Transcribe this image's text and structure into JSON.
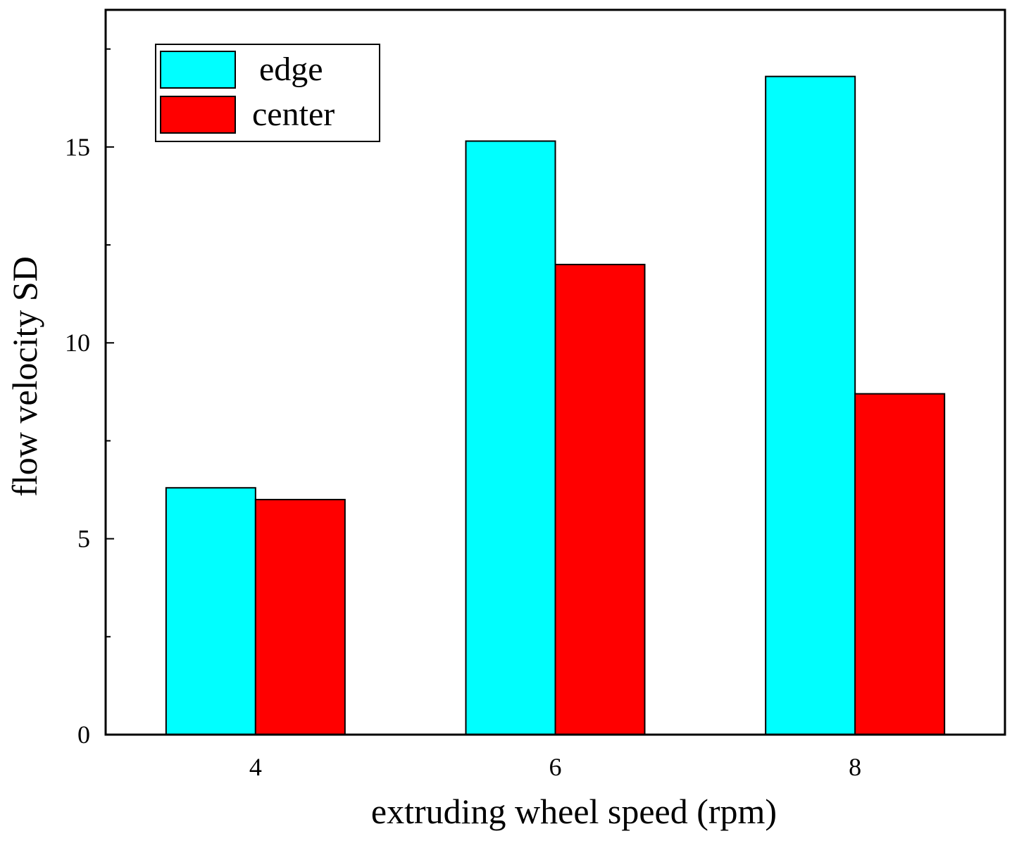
{
  "chart_data": {
    "type": "bar",
    "categories": [
      "4",
      "6",
      "8"
    ],
    "series": [
      {
        "name": "edge",
        "values": [
          6.3,
          15.15,
          16.8
        ],
        "color": "#00ffff"
      },
      {
        "name": "center",
        "values": [
          6.0,
          12.0,
          8.7
        ],
        "color": "#ff0000"
      }
    ],
    "xlabel": "extruding wheel speed (rpm)",
    "ylabel": "flow velocity SD",
    "ylim": [
      0,
      18.5
    ],
    "yticks": [
      {
        "value": 0,
        "label": "0"
      },
      {
        "value": 5,
        "label": "5"
      },
      {
        "value": 10,
        "label": "10"
      },
      {
        "value": 15,
        "label": "15"
      }
    ],
    "yminor_ticks": [
      2.5,
      7.5,
      12.5,
      17.5
    ],
    "grid": false,
    "legend_position": "top-left"
  }
}
